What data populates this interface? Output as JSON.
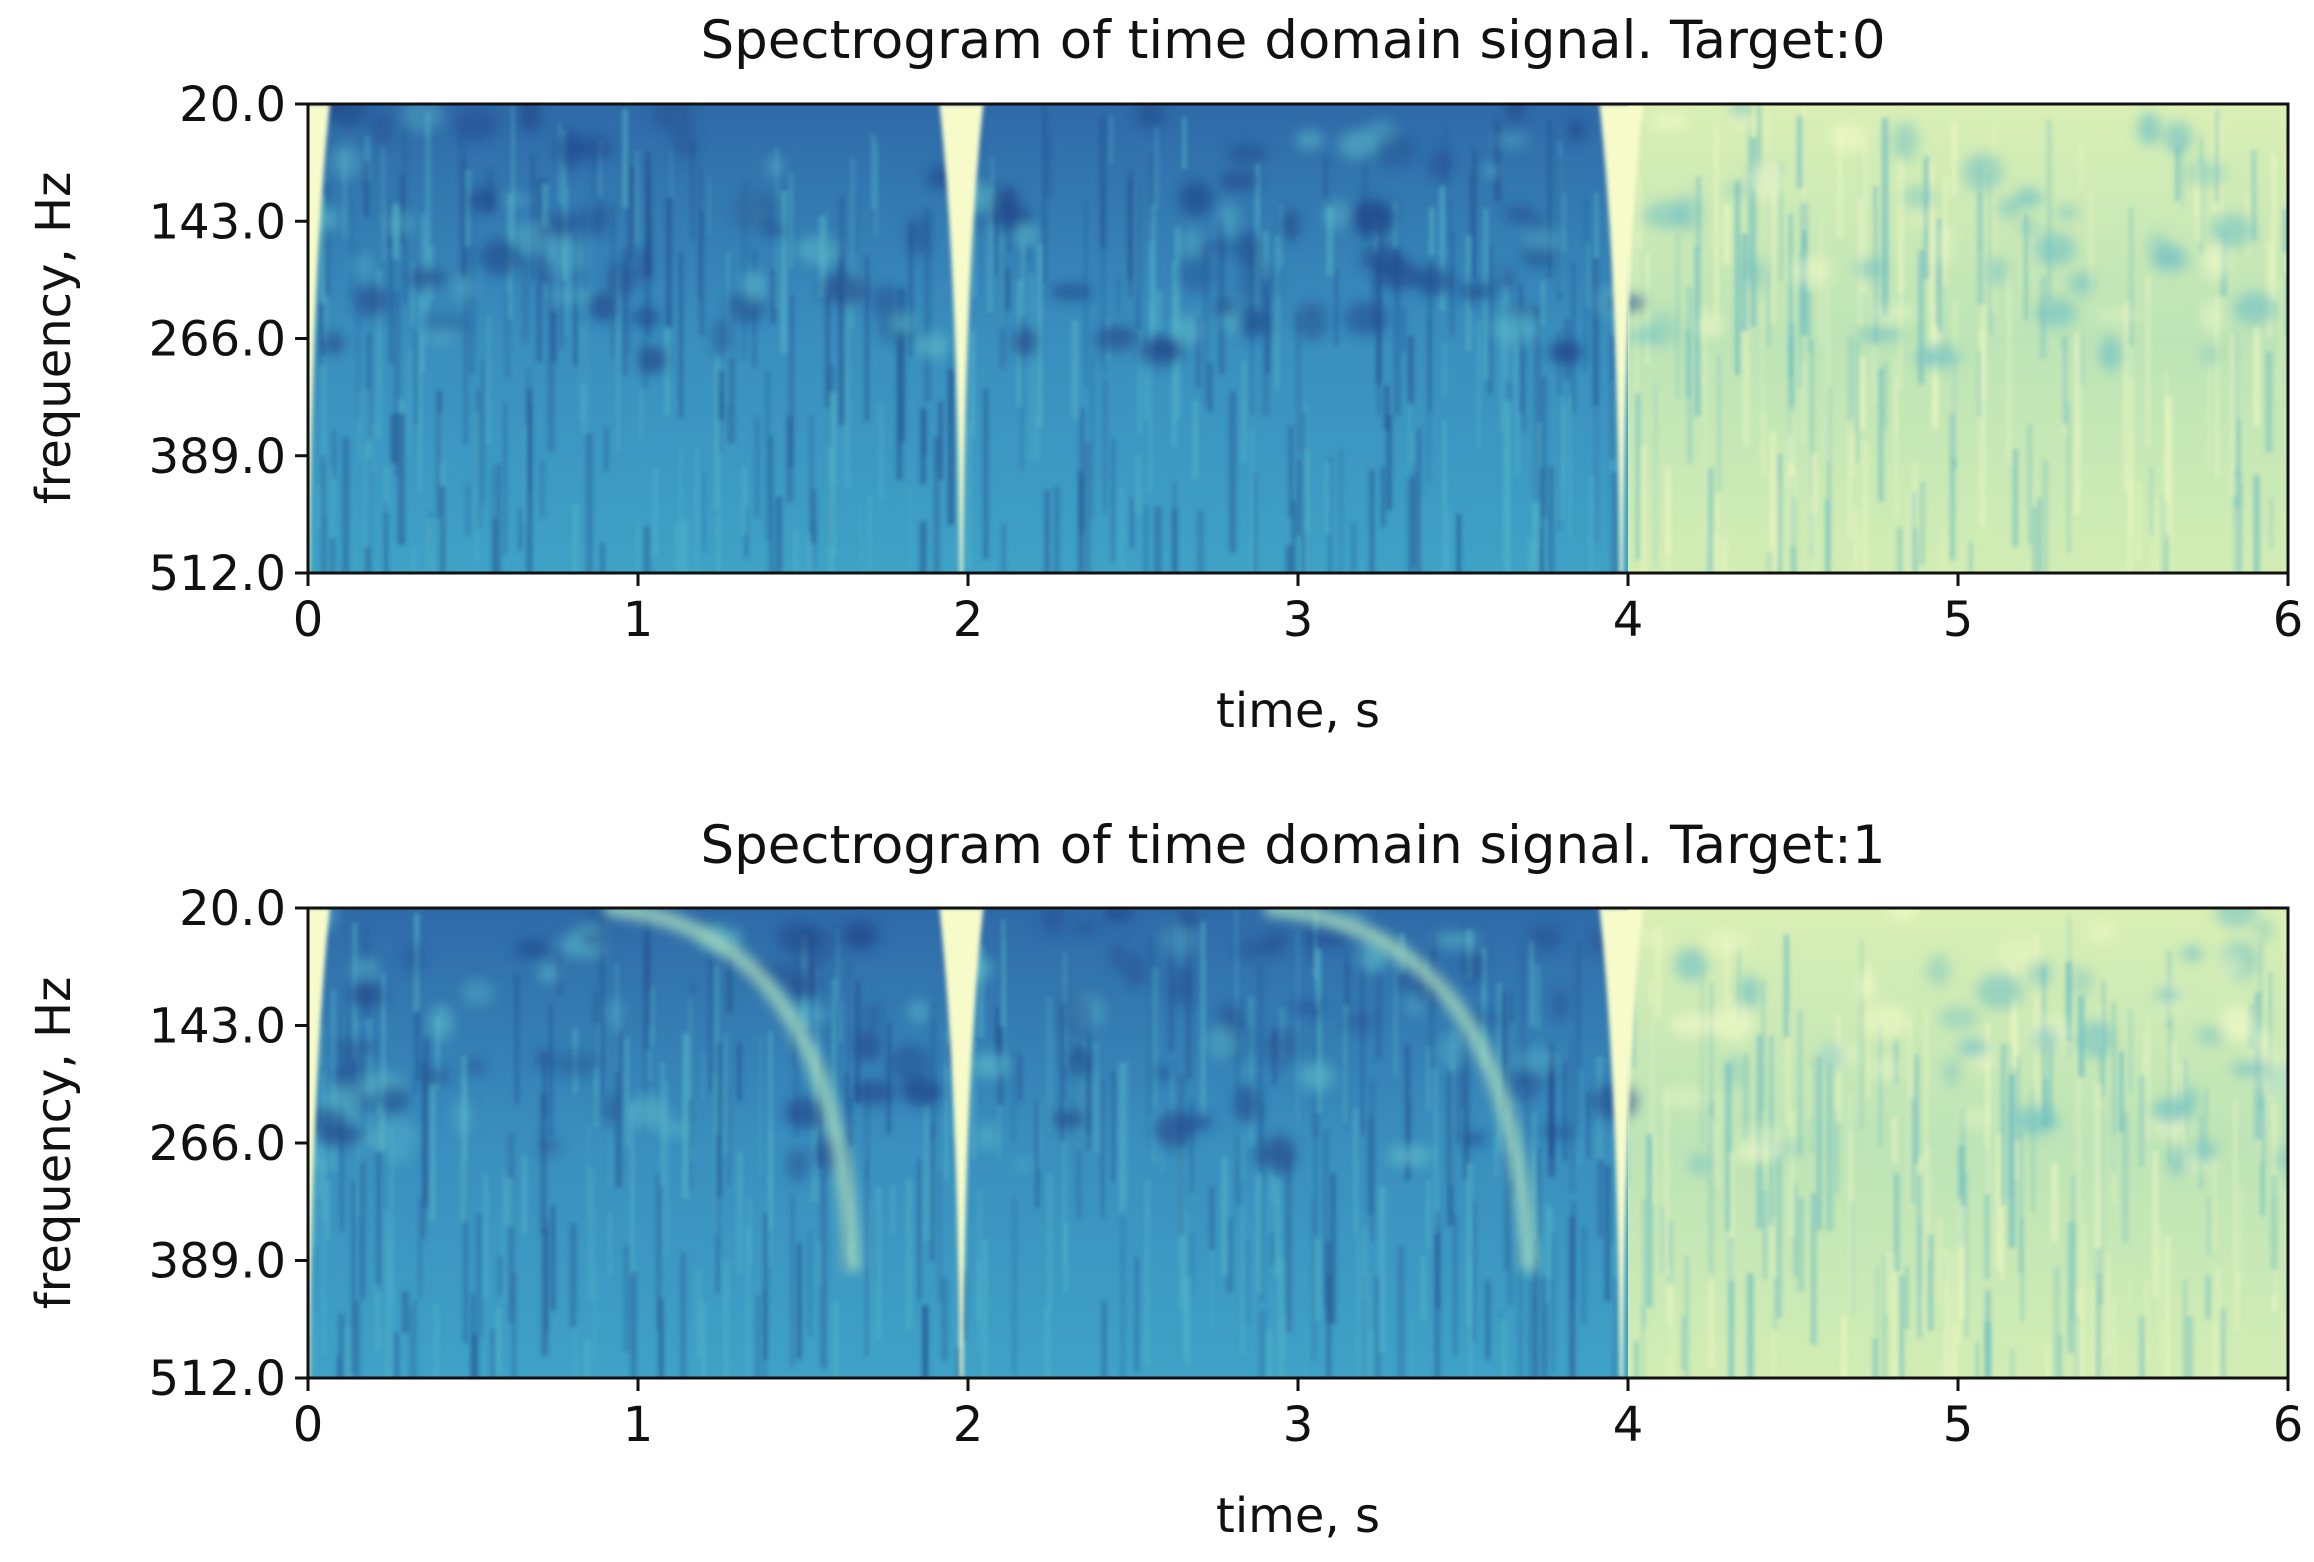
{
  "chart_data": [
    {
      "type": "heatmap",
      "title": "Spectrogram of time domain signal. Target:0",
      "xlabel": "time, s",
      "ylabel": "frequency, Hz",
      "xlim": [
        0,
        6
      ],
      "ylim": [
        512.0,
        20.0
      ],
      "x_ticks": [
        "0",
        "1",
        "2",
        "3",
        "4",
        "5",
        "6"
      ],
      "y_ticks": [
        "20.0",
        "143.0",
        "266.0",
        "389.0",
        "512.0"
      ],
      "colormap": "YlGnBu_r",
      "bright_time_ranges_s": [
        [
          4.0,
          6.0
        ]
      ],
      "transients_s": [
        0.0,
        1.98,
        3.98
      ],
      "chirps": []
    },
    {
      "type": "heatmap",
      "title": "Spectrogram of time domain signal. Target:1",
      "xlabel": "time, s",
      "ylabel": "frequency, Hz",
      "xlim": [
        0,
        6
      ],
      "ylim": [
        512.0,
        20.0
      ],
      "x_ticks": [
        "0",
        "1",
        "2",
        "3",
        "4",
        "5",
        "6"
      ],
      "y_ticks": [
        "20.0",
        "143.0",
        "266.0",
        "389.0",
        "512.0"
      ],
      "colormap": "YlGnBu_r",
      "bright_time_ranges_s": [
        [
          4.0,
          6.0
        ]
      ],
      "transients_s": [
        0.0,
        1.98,
        3.98
      ],
      "chirps": [
        {
          "t_start": 0.9,
          "t_end": 1.65,
          "f_start": 20.0,
          "f_end": 400.0
        },
        {
          "t_start": 2.9,
          "t_end": 3.7,
          "f_start": 20.0,
          "f_end": 400.0
        }
      ]
    }
  ],
  "colors": {
    "dark": "#2c5fa0",
    "mid": "#41a6c2",
    "light": "#e8f6b9"
  }
}
